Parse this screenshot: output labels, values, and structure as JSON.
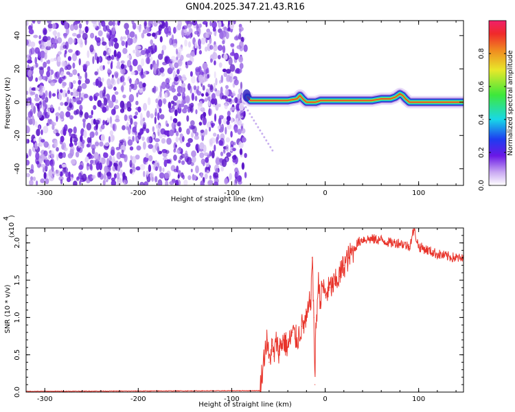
{
  "title": "GN04.2025.347.21.43.R16",
  "chart_data": [
    {
      "type": "heatmap",
      "xlabel": "Height of straight line (km)",
      "ylabel": "Frequency (Hz)",
      "xlim": [
        -320,
        148
      ],
      "ylim": [
        -50,
        49
      ],
      "xticks": [
        -300,
        -200,
        -100,
        0,
        100
      ],
      "yticks": [
        -40,
        -20,
        0,
        20,
        40
      ],
      "noise_region_x": [
        -320,
        -85
      ],
      "ridge": {
        "x": [
          -83,
          -80,
          -70,
          -60,
          -50,
          -40,
          -30,
          -27,
          -24,
          -20,
          -16,
          -10,
          -5,
          0,
          10,
          20,
          30,
          40,
          50,
          60,
          70,
          75,
          80,
          83,
          86,
          90,
          95,
          100,
          110,
          120,
          130,
          140,
          148
        ],
        "freq": [
          3,
          1,
          1,
          1,
          1,
          1,
          2,
          4,
          2,
          0,
          0,
          0,
          1,
          1,
          1,
          1,
          1,
          1,
          1,
          2,
          2,
          3,
          5,
          4,
          2,
          0,
          0,
          0,
          0,
          0,
          0,
          0,
          0
        ]
      },
      "colorbar": {
        "label": "Normalized spectral amplitude",
        "range": [
          0,
          1
        ],
        "ticks": [
          0.0,
          0.2,
          0.4,
          0.6,
          0.8
        ]
      }
    },
    {
      "type": "line",
      "xlabel": "Height of straight line (km)",
      "ylabel": "SNR (10 * v/v)",
      "y_multiplier": "(x10",
      "y_multiplier_exp": "4",
      "xlim": [
        -320,
        148
      ],
      "ylim": [
        0,
        2.2
      ],
      "xticks": [
        -300,
        -200,
        -100,
        0,
        100
      ],
      "yticks": [
        0.0,
        0.5,
        1.0,
        1.5,
        2.0
      ],
      "series": [
        {
          "color": "#e8332a",
          "x": [
            -320,
            -70,
            -64,
            -62,
            -60,
            -57,
            -55,
            -52,
            -50,
            -45,
            -40,
            -35,
            -30,
            -25,
            -20,
            -15,
            -14,
            -12,
            -11,
            -10,
            -7,
            -5,
            -3,
            0,
            5,
            10,
            15,
            20,
            25,
            30,
            35,
            40,
            50,
            60,
            70,
            80,
            90,
            95,
            100,
            110,
            120,
            130,
            140,
            148
          ],
          "y": [
            0.01,
            0.02,
            0.6,
            0.7,
            0.4,
            0.62,
            0.48,
            0.68,
            0.55,
            0.7,
            0.6,
            0.8,
            0.7,
            0.88,
            0.95,
            1.3,
            1.8,
            1.0,
            0.1,
            0.85,
            1.5,
            1.2,
            1.45,
            1.3,
            1.4,
            1.45,
            1.55,
            1.7,
            1.8,
            1.9,
            2.0,
            2.05,
            2.05,
            2.04,
            2.0,
            2.0,
            1.95,
            2.18,
            1.95,
            1.9,
            1.85,
            1.82,
            1.8,
            1.78
          ]
        }
      ]
    }
  ]
}
